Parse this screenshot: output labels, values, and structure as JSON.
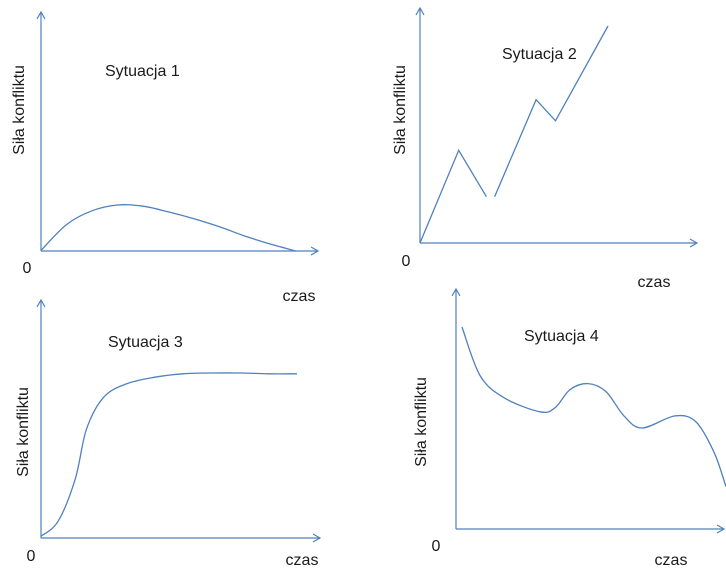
{
  "colors": {
    "axis": "#4f81bd",
    "curve": "#4f81bd",
    "text": "#1a1a1a"
  },
  "chart_data": [
    {
      "type": "line",
      "title": "Sytuacja 1",
      "xlabel": "czas",
      "ylabel": "Siła konfliktu",
      "origin_label": "0",
      "series": [
        {
          "x": [
            0,
            1,
            2,
            3,
            4,
            5,
            6,
            7,
            8,
            9,
            10
          ],
          "y": [
            0.05,
            2.3,
            3.5,
            4.0,
            3.9,
            3.4,
            2.8,
            2.1,
            1.3,
            0.6,
            0.0
          ]
        }
      ]
    },
    {
      "type": "line",
      "title": "Sytuacja 2",
      "xlabel": "czas",
      "ylabel": "Siła konfliktu",
      "origin_label": "0",
      "series": [
        {
          "x": [
            0,
            1.4,
            2.4
          ],
          "y": [
            0,
            4.4,
            2.2
          ]
        },
        {
          "x": [
            2.7,
            4.2,
            4.9,
            6.8
          ],
          "y": [
            2.2,
            6.8,
            5.8,
            10.3
          ]
        }
      ]
    },
    {
      "type": "line",
      "title": "Sytuacja 3",
      "xlabel": "czas",
      "ylabel": "Siła konfliktu",
      "origin_label": "0",
      "series": [
        {
          "x": [
            0,
            0.6,
            1.2,
            1.6,
            2.2,
            3.0,
            4.0,
            5.0,
            6.0,
            7.0,
            8.0,
            9.0
          ],
          "y": [
            0.1,
            1.0,
            3.5,
            6.5,
            8.4,
            9.2,
            9.6,
            9.8,
            9.85,
            9.85,
            9.8,
            9.8
          ]
        }
      ]
    },
    {
      "type": "line",
      "title": "Sytuacja 4",
      "xlabel": "czas",
      "ylabel": "Siła konfliktu",
      "origin_label": "0",
      "series": [
        {
          "x": [
            0.2,
            0.8,
            1.6,
            2.8,
            3.3,
            3.8,
            4.4,
            5.0,
            5.6,
            6.2,
            7.3,
            8.0,
            8.6,
            9.0
          ],
          "y": [
            10.0,
            7.6,
            6.5,
            5.8,
            6.0,
            6.9,
            7.2,
            6.8,
            5.6,
            5.0,
            5.6,
            5.3,
            3.8,
            2.1
          ]
        }
      ]
    }
  ]
}
